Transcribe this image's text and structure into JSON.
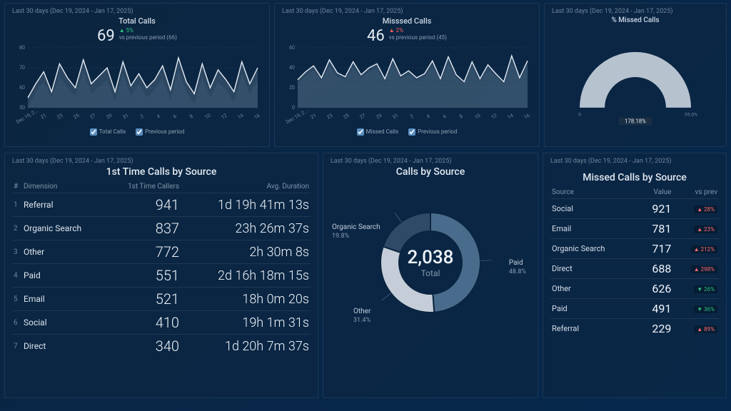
{
  "date_range": "Last 30 days (Dec 19, 2024 - Jan 17, 2025)",
  "colors": {
    "line": "#e6edf5",
    "area_fill": "rgba(160,185,210,0.22)",
    "prev_fill": "rgba(120,150,180,0.10)",
    "grid": "#2a4662",
    "accent": "#5b8fc2"
  },
  "totalCalls": {
    "title": "Total Calls",
    "value": "69",
    "delta": "5%",
    "delta_dir": "up",
    "prev_text": "vs previous period (66)",
    "y_ticks": [
      50,
      60,
      70,
      80
    ],
    "x_ticks": [
      "Dec 19, 2...",
      "21",
      "23",
      "25",
      "27",
      "29",
      "31",
      "2",
      "4",
      "6",
      "8",
      "10",
      "12",
      "14",
      "16"
    ],
    "series": [
      55,
      62,
      68,
      58,
      72,
      65,
      60,
      74,
      62,
      66,
      70,
      58,
      73,
      61,
      67,
      60,
      64,
      71,
      59,
      75,
      63,
      57,
      72,
      60,
      69,
      64,
      58,
      73,
      62,
      70
    ],
    "prev": [
      50,
      58,
      63,
      55,
      66,
      60,
      56,
      68,
      57,
      61,
      64,
      53,
      67,
      56,
      62,
      55,
      59,
      65,
      54,
      69,
      58,
      52,
      66,
      55,
      63,
      59,
      53,
      67,
      57,
      64
    ],
    "legend": [
      "Total Calls",
      "Previous period"
    ]
  },
  "missedCalls": {
    "title": "Misssed Calls",
    "value": "46",
    "delta": "2%",
    "delta_dir": "down",
    "prev_text": "vs previous period (45)",
    "y_ticks": [
      0,
      20,
      40,
      60
    ],
    "x_ticks": [
      "Dec 19, 2...",
      "21",
      "23",
      "25",
      "27",
      "29",
      "31",
      "2",
      "4",
      "6",
      "8",
      "10",
      "12",
      "14",
      "16"
    ],
    "series": [
      28,
      36,
      42,
      30,
      48,
      35,
      31,
      46,
      33,
      40,
      44,
      29,
      49,
      32,
      37,
      30,
      34,
      47,
      29,
      51,
      33,
      26,
      46,
      29,
      43,
      34,
      26,
      52,
      30,
      47
    ],
    "prev": [
      25,
      32,
      38,
      27,
      42,
      31,
      28,
      40,
      30,
      36,
      39,
      26,
      44,
      29,
      33,
      27,
      31,
      41,
      26,
      45,
      30,
      24,
      41,
      26,
      38,
      31,
      24,
      46,
      27,
      42
    ],
    "legend": [
      "Missed Calls",
      "Previous period"
    ]
  },
  "gauge": {
    "title": "% Missed Calls",
    "value_label": "178.18%",
    "scale_min": "0",
    "scale_max": "55.0%"
  },
  "firstTime": {
    "title": "1st Time Calls by Source",
    "headers": [
      "#",
      "Dimension",
      "1st Time Callers",
      "Avg. Duration"
    ],
    "rows": [
      {
        "i": "1",
        "dim": "Referral",
        "calls": "941",
        "dur": "1d 19h 41m 13s"
      },
      {
        "i": "2",
        "dim": "Organic Search",
        "calls": "837",
        "dur": "23h 26m 37s"
      },
      {
        "i": "3",
        "dim": "Other",
        "calls": "772",
        "dur": "2h 30m 8s"
      },
      {
        "i": "4",
        "dim": "Paid",
        "calls": "551",
        "dur": "2d 16h 18m 15s"
      },
      {
        "i": "5",
        "dim": "Email",
        "calls": "521",
        "dur": "18h 0m 20s"
      },
      {
        "i": "6",
        "dim": "Social",
        "calls": "410",
        "dur": "19h 1m 31s"
      },
      {
        "i": "7",
        "dim": "Direct",
        "calls": "340",
        "dur": "1d 20h 7m 37s"
      }
    ]
  },
  "donut": {
    "title": "Calls by Source",
    "total": "2,038",
    "total_label": "Total",
    "slices": [
      {
        "label": "Paid",
        "pct": "48.8%",
        "frac": 0.488,
        "color": "#4a6c8c"
      },
      {
        "label": "Other",
        "pct": "31.4%",
        "frac": 0.314,
        "color": "#c5ced8"
      },
      {
        "label": "Organic Search",
        "pct": "19.8%",
        "frac": 0.198,
        "color": "#2f4a66"
      }
    ]
  },
  "missedBySource": {
    "title": "Missed Calls by Source",
    "headers": [
      "Source",
      "Value",
      "vs prev"
    ],
    "rows": [
      {
        "src": "Social",
        "val": "921",
        "delta": "28%",
        "dir": "up"
      },
      {
        "src": "Email",
        "val": "781",
        "delta": "23%",
        "dir": "up"
      },
      {
        "src": "Organic Search",
        "val": "717",
        "delta": "212%",
        "dir": "up"
      },
      {
        "src": "Direct",
        "val": "688",
        "delta": "298%",
        "dir": "up"
      },
      {
        "src": "Other",
        "val": "626",
        "delta": "26%",
        "dir": "down"
      },
      {
        "src": "Paid",
        "val": "491",
        "delta": "36%",
        "dir": "down"
      },
      {
        "src": "Referral",
        "val": "229",
        "delta": "89%",
        "dir": "up"
      }
    ]
  }
}
